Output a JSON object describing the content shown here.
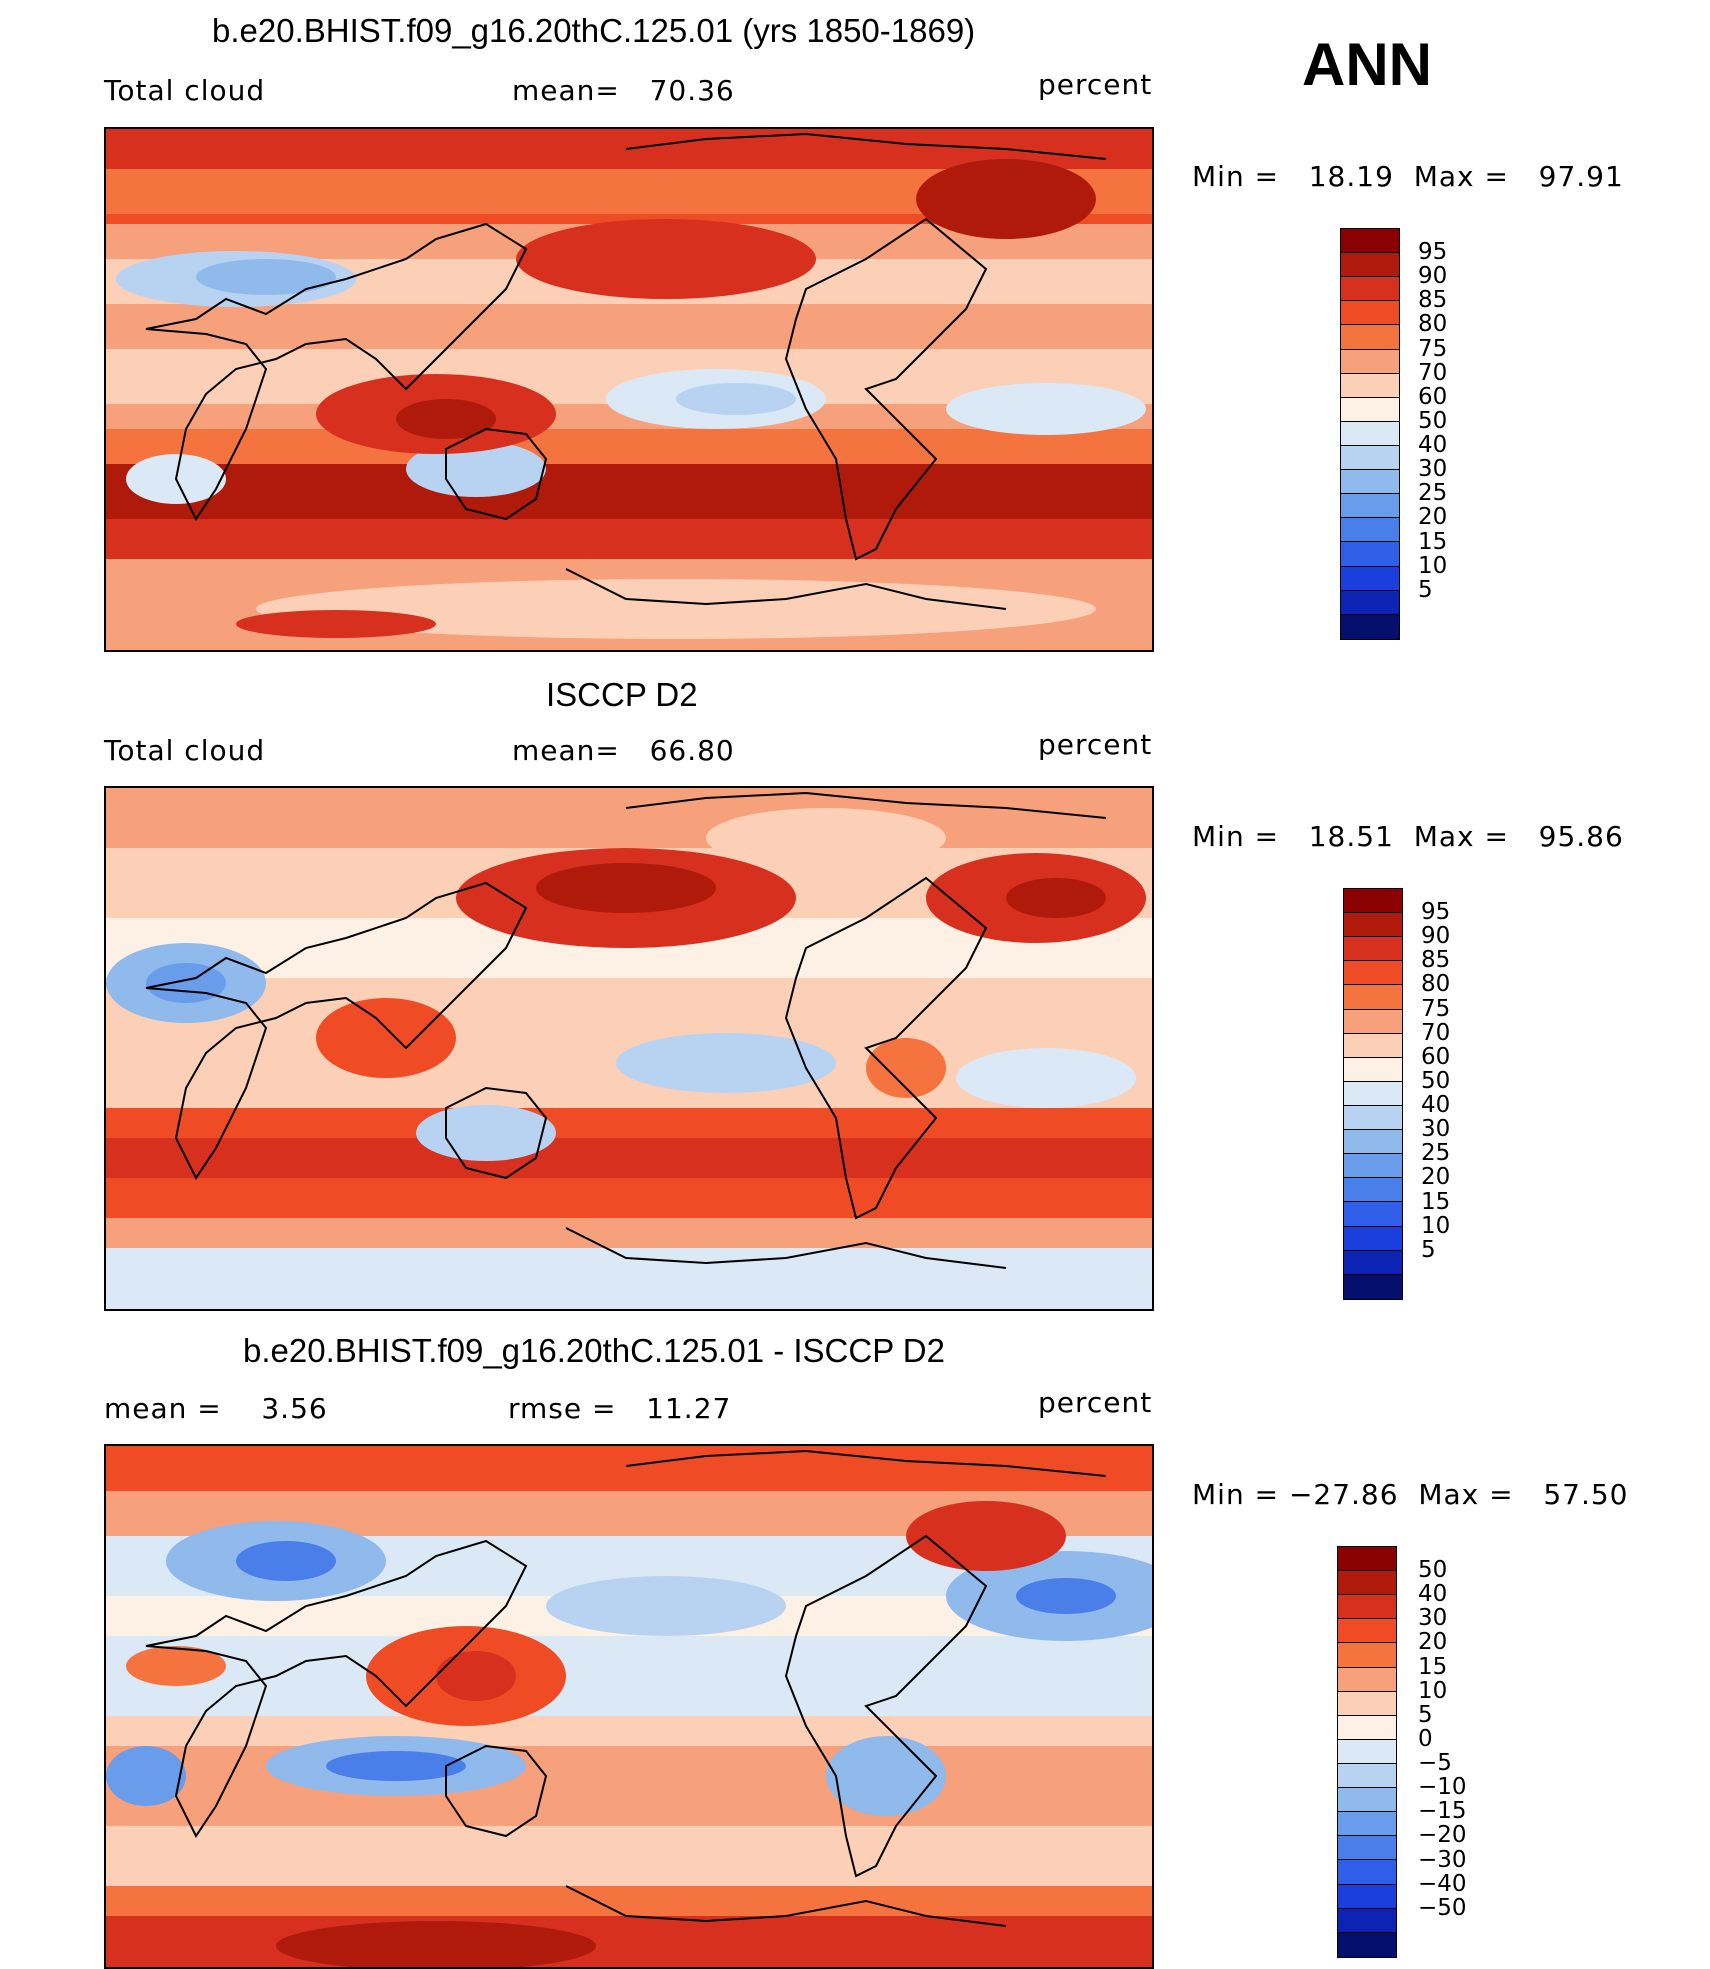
{
  "season": "ANN",
  "units_label": "percent",
  "panels": [
    {
      "id": "model",
      "title": "b.e20.BHIST.f09_g16.20thC.125.01 (yrs 1850-1869)",
      "left_text": "Total cloud",
      "mid_text": "mean=   70.36",
      "min_max": "Min =   18.19  Max =   97.91",
      "colorbar_colors": [
        "#8b0000",
        "#b01a0a",
        "#d7301f",
        "#ef4b24",
        "#f4733f",
        "#f7a07c",
        "#fcd0b6",
        "#fdf0e4",
        "#dbe9f6",
        "#b8d3f2",
        "#90b9ec",
        "#6a9cec",
        "#4a7ee8",
        "#2f5ee8",
        "#1b3fdc",
        "#0d23b4",
        "#05106e"
      ],
      "colorbar_labels": [
        "95",
        "90",
        "85",
        "80",
        "75",
        "70",
        "60",
        "50",
        "40",
        "30",
        "25",
        "20",
        "15",
        "10",
        "5"
      ]
    },
    {
      "id": "obs",
      "title": "ISCCP D2",
      "left_text": "Total cloud",
      "mid_text": "mean=   66.80",
      "min_max": "Min =   18.51  Max =   95.86",
      "colorbar_colors": [
        "#8b0000",
        "#b01a0a",
        "#d7301f",
        "#ef4b24",
        "#f4733f",
        "#f7a07c",
        "#fcd0b6",
        "#fdf0e4",
        "#dbe9f6",
        "#b8d3f2",
        "#90b9ec",
        "#6a9cec",
        "#4a7ee8",
        "#2f5ee8",
        "#1b3fdc",
        "#0d23b4",
        "#05106e"
      ],
      "colorbar_labels": [
        "95",
        "90",
        "85",
        "80",
        "75",
        "70",
        "60",
        "50",
        "40",
        "30",
        "25",
        "20",
        "15",
        "10",
        "5"
      ]
    },
    {
      "id": "diff",
      "title": "b.e20.BHIST.f09_g16.20thC.125.01 - ISCCP D2",
      "left_text": "mean =    3.56",
      "mid_text": "rmse =   11.27",
      "min_max": "Min = −27.86  Max =   57.50",
      "colorbar_colors": [
        "#8b0000",
        "#b01a0a",
        "#d7301f",
        "#ef4b24",
        "#f4733f",
        "#f7a07c",
        "#fcd0b6",
        "#fdf0e4",
        "#dbe9f6",
        "#b8d3f2",
        "#90b9ec",
        "#6a9cec",
        "#4a7ee8",
        "#2f5ee8",
        "#1b3fdc",
        "#0d23b4",
        "#05106e"
      ],
      "colorbar_labels": [
        "50",
        "40",
        "30",
        "20",
        "15",
        "10",
        "5",
        "0",
        "−5",
        "−10",
        "−15",
        "−20",
        "−30",
        "−40",
        "−50"
      ]
    }
  ]
}
